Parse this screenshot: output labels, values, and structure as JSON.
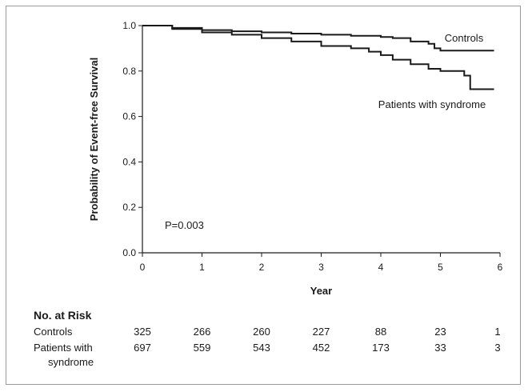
{
  "chart_data": {
    "type": "line",
    "title": "",
    "xlabel": "Year",
    "ylabel": "Probability of Event-free Survival",
    "xlim": [
      0,
      6
    ],
    "ylim": [
      0.0,
      1.0
    ],
    "x_ticks": [
      "0",
      "1",
      "2",
      "3",
      "4",
      "5",
      "6"
    ],
    "y_ticks": [
      "0.0",
      "0.2",
      "0.4",
      "0.6",
      "0.8",
      "1.0"
    ],
    "grid": false,
    "annotation": "P=0.003",
    "series": [
      {
        "name": "Controls",
        "step": true,
        "color": "#1a1a1a",
        "x": [
          0,
          0.5,
          1.0,
          1.5,
          2.0,
          2.5,
          3.0,
          3.5,
          4.0,
          4.2,
          4.5,
          4.8,
          4.9,
          5.0,
          5.9
        ],
        "y": [
          1.0,
          0.99,
          0.98,
          0.975,
          0.97,
          0.965,
          0.96,
          0.955,
          0.95,
          0.945,
          0.93,
          0.92,
          0.9,
          0.89,
          0.89
        ]
      },
      {
        "name": "Patients with syndrome",
        "step": true,
        "color": "#1a1a1a",
        "x": [
          0,
          0.5,
          1.0,
          1.5,
          2.0,
          2.5,
          3.0,
          3.5,
          3.8,
          4.0,
          4.2,
          4.5,
          4.8,
          5.0,
          5.4,
          5.5,
          5.9
        ],
        "y": [
          1.0,
          0.985,
          0.97,
          0.96,
          0.945,
          0.93,
          0.91,
          0.9,
          0.885,
          0.87,
          0.85,
          0.83,
          0.81,
          0.8,
          0.78,
          0.72,
          0.72
        ]
      }
    ],
    "number_at_risk": {
      "title": "No. at Risk",
      "times": [
        0,
        1,
        2,
        3,
        4,
        5,
        6
      ],
      "rows": [
        {
          "label": "Controls",
          "values": [
            "325",
            "266",
            "260",
            "227",
            "88",
            "23",
            "1"
          ]
        },
        {
          "label_line1": "Patients with",
          "label_line2": "syndrome",
          "values": [
            "697",
            "559",
            "543",
            "452",
            "173",
            "33",
            "3"
          ]
        }
      ]
    }
  }
}
